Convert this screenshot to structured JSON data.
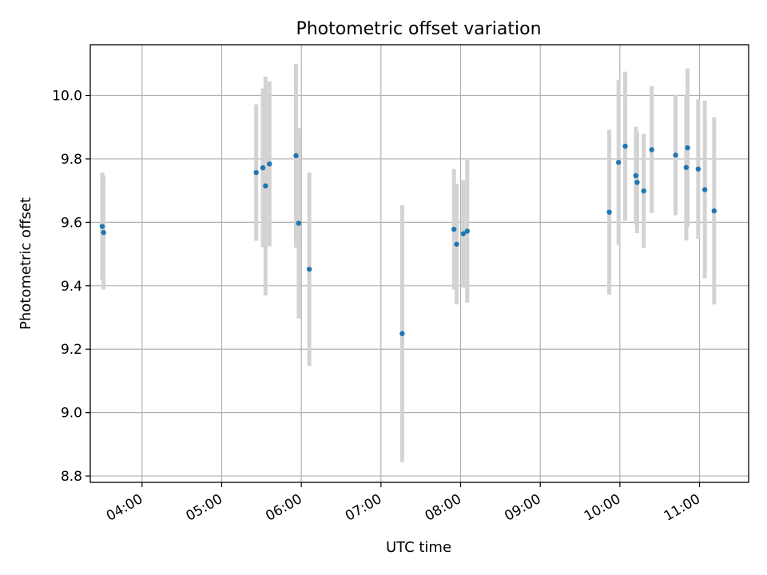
{
  "chart_data": {
    "type": "scatter",
    "title": "Photometric offset variation",
    "xlabel": "UTC time",
    "ylabel": "Photometric offset",
    "xlim": [
      "03:21",
      "11:37"
    ],
    "ylim": [
      8.78,
      10.16
    ],
    "x_ticks": [
      "04:00",
      "05:00",
      "06:00",
      "07:00",
      "08:00",
      "09:00",
      "10:00",
      "11:00"
    ],
    "y_ticks": [
      "8.8",
      "9.0",
      "9.2",
      "9.4",
      "9.6",
      "9.8",
      "10.0"
    ],
    "grid": true,
    "marker_color": "#1f77b4",
    "errorbar_color": "#d3d3d3",
    "series": [
      {
        "points": [
          {
            "x": "03:30",
            "y": 9.587,
            "err": 0.17
          },
          {
            "x": "03:31",
            "y": 9.568,
            "err": 0.18
          },
          {
            "x": "05:26",
            "y": 9.757,
            "err": 0.215
          },
          {
            "x": "05:31",
            "y": 9.772,
            "err": 0.25
          },
          {
            "x": "05:33",
            "y": 9.715,
            "err": 0.345
          },
          {
            "x": "05:36",
            "y": 9.784,
            "err": 0.26
          },
          {
            "x": "05:56",
            "y": 9.81,
            "err": 0.29
          },
          {
            "x": "05:58",
            "y": 9.597,
            "err": 0.3
          },
          {
            "x": "06:06",
            "y": 9.452,
            "err": 0.305
          },
          {
            "x": "07:16",
            "y": 9.249,
            "err": 0.405
          },
          {
            "x": "07:55",
            "y": 9.578,
            "err": 0.19
          },
          {
            "x": "07:57",
            "y": 9.531,
            "err": 0.19
          },
          {
            "x": "08:02",
            "y": 9.564,
            "err": 0.17
          },
          {
            "x": "08:05",
            "y": 9.572,
            "err": 0.225
          },
          {
            "x": "09:52",
            "y": 9.632,
            "err": 0.26
          },
          {
            "x": "09:59",
            "y": 9.789,
            "err": 0.26
          },
          {
            "x": "10:04",
            "y": 9.84,
            "err": 0.235
          },
          {
            "x": "10:12",
            "y": 9.747,
            "err": 0.155
          },
          {
            "x": "10:13",
            "y": 9.726,
            "err": 0.16
          },
          {
            "x": "10:18",
            "y": 9.699,
            "err": 0.18
          },
          {
            "x": "10:24",
            "y": 9.829,
            "err": 0.2
          },
          {
            "x": "10:42",
            "y": 9.812,
            "err": 0.19
          },
          {
            "x": "10:50",
            "y": 9.773,
            "err": 0.23
          },
          {
            "x": "10:51",
            "y": 9.835,
            "err": 0.25
          },
          {
            "x": "10:59",
            "y": 9.768,
            "err": 0.22
          },
          {
            "x": "11:04",
            "y": 9.703,
            "err": 0.28
          },
          {
            "x": "11:11",
            "y": 9.636,
            "err": 0.295
          }
        ]
      }
    ]
  }
}
